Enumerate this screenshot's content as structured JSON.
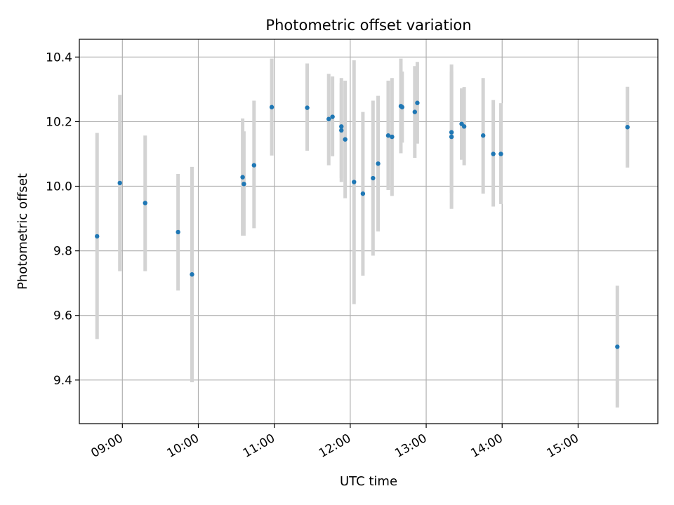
{
  "chart_data": {
    "type": "scatter",
    "title": "Photometric offset variation",
    "xlabel": "UTC time",
    "ylabel": "Photometric offset",
    "x_axis_kind": "time-of-day (HH:MM, UTC)",
    "xlim": [
      "08:26",
      "16:03"
    ],
    "ylim": [
      9.265,
      10.455
    ],
    "x_ticks": [
      "09:00",
      "10:00",
      "11:00",
      "12:00",
      "13:00",
      "14:00",
      "15:00"
    ],
    "y_ticks": [
      "9.4",
      "9.6",
      "9.8",
      "10.0",
      "10.2",
      "10.4"
    ],
    "grid": true,
    "legend": "none",
    "colors": {
      "points": "#1f77b4",
      "error_bars": "#d3d3d3",
      "grid": "#b0b0b0"
    },
    "series": [
      {
        "points": [
          {
            "x": "08:40",
            "y": 9.845,
            "ylo": 9.527,
            "yhi": 10.165
          },
          {
            "x": "08:58",
            "y": 10.01,
            "ylo": 9.737,
            "yhi": 10.283
          },
          {
            "x": "09:18",
            "y": 9.948,
            "ylo": 9.737,
            "yhi": 10.157
          },
          {
            "x": "09:44",
            "y": 9.858,
            "ylo": 9.677,
            "yhi": 10.038
          },
          {
            "x": "09:55",
            "y": 9.727,
            "ylo": 9.393,
            "yhi": 10.06
          },
          {
            "x": "10:35",
            "y": 10.028,
            "ylo": 9.847,
            "yhi": 10.21
          },
          {
            "x": "10:36",
            "y": 10.007,
            "ylo": 9.847,
            "yhi": 10.17
          },
          {
            "x": "10:44",
            "y": 10.065,
            "ylo": 9.87,
            "yhi": 10.265
          },
          {
            "x": "10:58",
            "y": 10.245,
            "ylo": 10.095,
            "yhi": 10.395
          },
          {
            "x": "11:26",
            "y": 10.243,
            "ylo": 10.11,
            "yhi": 10.38
          },
          {
            "x": "11:43",
            "y": 10.208,
            "ylo": 10.065,
            "yhi": 10.348
          },
          {
            "x": "11:46",
            "y": 10.215,
            "ylo": 10.093,
            "yhi": 10.34
          },
          {
            "x": "11:53",
            "y": 10.185,
            "ylo": 10.013,
            "yhi": 10.335
          },
          {
            "x": "11:53",
            "y": 10.173,
            "ylo": 10.025,
            "yhi": 10.32
          },
          {
            "x": "11:56",
            "y": 10.145,
            "ylo": 9.963,
            "yhi": 10.327
          },
          {
            "x": "12:03",
            "y": 10.013,
            "ylo": 9.635,
            "yhi": 10.39
          },
          {
            "x": "12:10",
            "y": 9.977,
            "ylo": 9.723,
            "yhi": 10.23
          },
          {
            "x": "12:18",
            "y": 10.025,
            "ylo": 9.785,
            "yhi": 10.265
          },
          {
            "x": "12:22",
            "y": 10.07,
            "ylo": 9.86,
            "yhi": 10.28
          },
          {
            "x": "12:30",
            "y": 10.157,
            "ylo": 9.988,
            "yhi": 10.327
          },
          {
            "x": "12:33",
            "y": 10.153,
            "ylo": 9.97,
            "yhi": 10.335
          },
          {
            "x": "12:40",
            "y": 10.248,
            "ylo": 10.102,
            "yhi": 10.395
          },
          {
            "x": "12:41",
            "y": 10.245,
            "ylo": 10.135,
            "yhi": 10.355
          },
          {
            "x": "12:51",
            "y": 10.23,
            "ylo": 10.088,
            "yhi": 10.372
          },
          {
            "x": "12:53",
            "y": 10.258,
            "ylo": 10.132,
            "yhi": 10.385
          },
          {
            "x": "13:20",
            "y": 10.153,
            "ylo": 9.93,
            "yhi": 10.377
          },
          {
            "x": "13:20",
            "y": 10.167,
            "ylo": 9.98,
            "yhi": 10.355
          },
          {
            "x": "13:28",
            "y": 10.193,
            "ylo": 10.082,
            "yhi": 10.303
          },
          {
            "x": "13:30",
            "y": 10.185,
            "ylo": 10.065,
            "yhi": 10.307
          },
          {
            "x": "13:45",
            "y": 10.157,
            "ylo": 9.977,
            "yhi": 10.335
          },
          {
            "x": "13:53",
            "y": 10.1,
            "ylo": 9.937,
            "yhi": 10.267
          },
          {
            "x": "13:59",
            "y": 10.1,
            "ylo": 9.945,
            "yhi": 10.257
          },
          {
            "x": "15:31",
            "y": 9.503,
            "ylo": 9.315,
            "yhi": 9.692
          },
          {
            "x": "15:39",
            "y": 10.183,
            "ylo": 10.058,
            "yhi": 10.308
          }
        ]
      }
    ]
  }
}
